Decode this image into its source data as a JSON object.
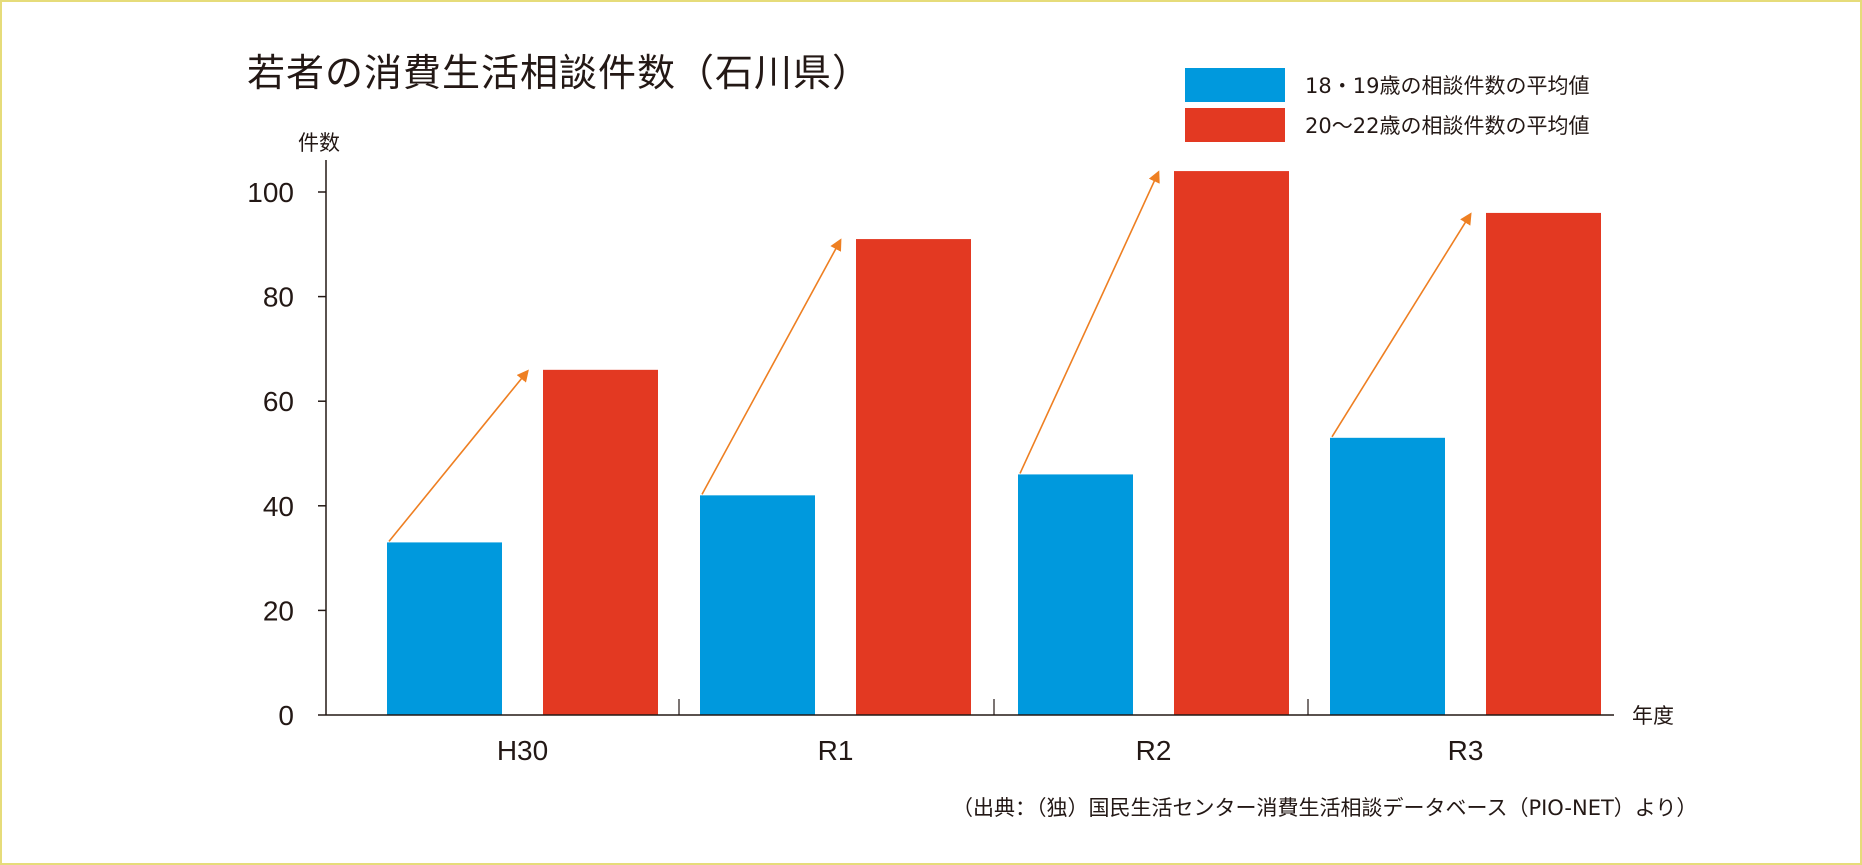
{
  "chart_data": {
    "type": "bar",
    "title": "若者の消費生活相談件数（石川県）",
    "ylabel": "件数",
    "xlabel": "年度",
    "categories": [
      "H30",
      "R1",
      "R2",
      "R3"
    ],
    "series": [
      {
        "name": "18・19歳の相談件数の平均値",
        "values": [
          33,
          42,
          46,
          53
        ],
        "color": "#0099dd"
      },
      {
        "name": "20〜22歳の相談件数の平均値",
        "values": [
          66,
          91,
          104,
          96
        ],
        "color": "#e33922"
      }
    ],
    "ylim": [
      0,
      100
    ],
    "yticks": [
      "0",
      "20",
      "40",
      "60",
      "80",
      "100"
    ],
    "arrow_color": "#ee7f22",
    "grid": false,
    "legend_position": "top-right",
    "source": "（出典：（独）国民生活センター消費生活相談データベース（PIO-NET）より）"
  }
}
